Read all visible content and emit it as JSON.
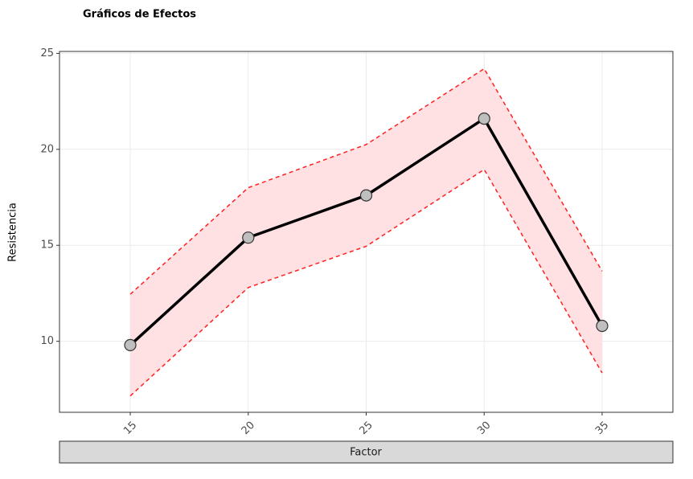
{
  "chart_data": {
    "type": "line",
    "title": "Gráficos de Efectos",
    "x_label": "Factor",
    "y_label": "Resistencia",
    "x": [
      15,
      20,
      25,
      30,
      35
    ],
    "values": [
      9.8,
      15.4,
      17.6,
      21.6,
      10.8
    ],
    "upper": [
      12.45,
      18.0,
      20.25,
      24.2,
      13.65
    ],
    "lower": [
      7.15,
      12.8,
      14.95,
      18.95,
      8.35
    ],
    "color": "#000000",
    "point_color": "#bfbfbf",
    "band_color": "#ffe0e3",
    "band_line_color": "#ff2020",
    "xlim": [
      12,
      38
    ],
    "ylim": [
      6.3,
      25.1
    ],
    "xticks": [
      15,
      20,
      25,
      30,
      35
    ],
    "yticks": [
      10,
      15,
      20,
      25
    ],
    "grid": true
  }
}
